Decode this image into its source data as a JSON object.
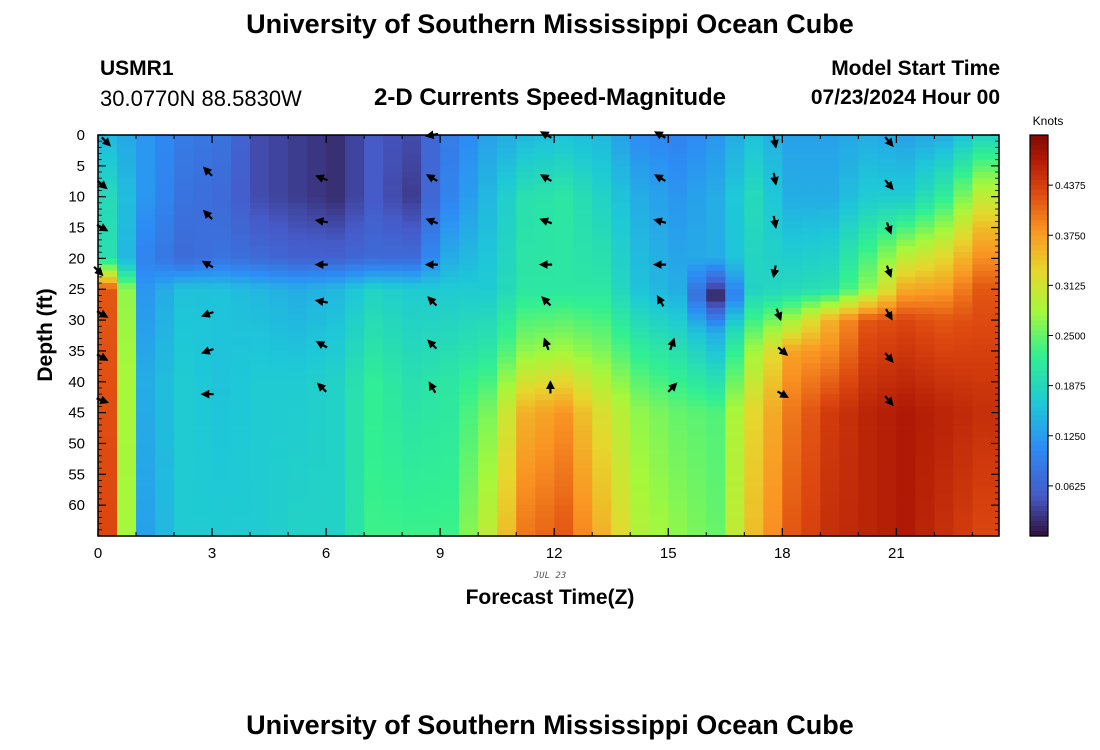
{
  "header": {
    "title": "University of Southern Mississippi Ocean Cube",
    "station_id": "USMR1",
    "location": "30.0770N  88.5830W",
    "subtitle": "2-D Currents Speed-Magnitude",
    "model_label": "Model Start Time",
    "model_time": "07/23/2024 Hour 00"
  },
  "footer": {
    "title": "University of Southern Mississippi Ocean Cube"
  },
  "chart_data": {
    "type": "heatmap",
    "title": "2-D Currents Speed-Magnitude",
    "xlabel": "Forecast Time(Z)",
    "ylabel": "Depth (ft)",
    "date_label": "JUL 23",
    "xlim": [
      0,
      23.7
    ],
    "ylim": [
      0,
      65
    ],
    "x_ticks": [
      0,
      3,
      6,
      9,
      12,
      15,
      18,
      21
    ],
    "y_ticks": [
      0,
      5,
      10,
      15,
      20,
      25,
      30,
      35,
      40,
      45,
      50,
      55,
      60
    ],
    "colorbar": {
      "unit": "Knots",
      "range": [
        0,
        0.5
      ],
      "ticks": [
        "0.4375",
        "0.3750",
        "0.3125",
        "0.2500",
        "0.1875",
        "0.1250",
        "0.0625"
      ],
      "tick_values": [
        0.4375,
        0.375,
        0.3125,
        0.25,
        0.1875,
        0.125,
        0.0625
      ]
    },
    "speed_columns": [
      {
        "hour": 0,
        "depths": [
          0,
          10,
          20,
          22,
          25,
          65
        ],
        "speeds": [
          0.15,
          0.19,
          0.2,
          0.28,
          0.42,
          0.43
        ]
      },
      {
        "hour": 1,
        "depths": [
          0,
          10,
          20,
          25,
          40,
          65
        ],
        "speeds": [
          0.12,
          0.12,
          0.1,
          0.12,
          0.14,
          0.13
        ]
      },
      {
        "hour": 2,
        "depths": [
          0,
          10,
          20,
          25,
          40,
          65
        ],
        "speeds": [
          0.09,
          0.08,
          0.07,
          0.16,
          0.17,
          0.17
        ]
      },
      {
        "hour": 3,
        "depths": [
          0,
          10,
          20,
          25,
          40,
          65
        ],
        "speeds": [
          0.08,
          0.07,
          0.08,
          0.16,
          0.16,
          0.17
        ]
      },
      {
        "hour": 4,
        "depths": [
          0,
          10,
          20,
          25,
          40,
          65
        ],
        "speeds": [
          0.04,
          0.04,
          0.07,
          0.15,
          0.17,
          0.17
        ]
      },
      {
        "hour": 5,
        "depths": [
          0,
          10,
          20,
          25,
          40,
          65
        ],
        "speeds": [
          0.03,
          0.03,
          0.06,
          0.14,
          0.17,
          0.18
        ]
      },
      {
        "hour": 6,
        "depths": [
          0,
          10,
          20,
          25,
          40,
          65
        ],
        "speeds": [
          0.02,
          0.02,
          0.06,
          0.15,
          0.18,
          0.18
        ]
      },
      {
        "hour": 7,
        "depths": [
          0,
          10,
          20,
          25,
          40,
          65
        ],
        "speeds": [
          0.05,
          0.05,
          0.07,
          0.18,
          0.22,
          0.23
        ]
      },
      {
        "hour": 8,
        "depths": [
          0,
          10,
          20,
          25,
          40,
          65
        ],
        "speeds": [
          0.04,
          0.03,
          0.07,
          0.17,
          0.2,
          0.23
        ]
      },
      {
        "hour": 9,
        "depths": [
          0,
          10,
          20,
          25,
          40,
          65
        ],
        "speeds": [
          0.09,
          0.1,
          0.14,
          0.17,
          0.21,
          0.23
        ]
      },
      {
        "hour": 10,
        "depths": [
          0,
          10,
          25,
          35,
          45,
          65
        ],
        "speeds": [
          0.13,
          0.15,
          0.17,
          0.21,
          0.26,
          0.3
        ]
      },
      {
        "hour": 11,
        "depths": [
          0,
          10,
          25,
          35,
          45,
          65
        ],
        "speeds": [
          0.15,
          0.2,
          0.21,
          0.27,
          0.36,
          0.4
        ]
      },
      {
        "hour": 12,
        "depths": [
          0,
          10,
          25,
          35,
          45,
          65
        ],
        "speeds": [
          0.16,
          0.21,
          0.21,
          0.28,
          0.38,
          0.42
        ]
      },
      {
        "hour": 13,
        "depths": [
          0,
          10,
          25,
          35,
          45,
          65
        ],
        "speeds": [
          0.15,
          0.18,
          0.21,
          0.26,
          0.32,
          0.36
        ]
      },
      {
        "hour": 14,
        "depths": [
          0,
          10,
          25,
          35,
          45,
          65
        ],
        "speeds": [
          0.11,
          0.14,
          0.16,
          0.22,
          0.27,
          0.29
        ]
      },
      {
        "hour": 15,
        "depths": [
          0,
          10,
          25,
          35,
          45,
          65
        ],
        "speeds": [
          0.1,
          0.12,
          0.14,
          0.2,
          0.25,
          0.27
        ]
      },
      {
        "hour": 16,
        "depths": [
          0,
          10,
          20,
          26,
          32,
          45,
          65
        ],
        "speeds": [
          0.12,
          0.14,
          0.14,
          0.01,
          0.14,
          0.24,
          0.25
        ]
      },
      {
        "hour": 17,
        "depths": [
          0,
          10,
          25,
          35,
          45,
          65
        ],
        "speeds": [
          0.16,
          0.19,
          0.18,
          0.28,
          0.33,
          0.35
        ]
      },
      {
        "hour": 18,
        "depths": [
          0,
          10,
          25,
          35,
          45,
          65
        ],
        "speeds": [
          0.13,
          0.14,
          0.19,
          0.37,
          0.4,
          0.42
        ]
      },
      {
        "hour": 19,
        "depths": [
          0,
          10,
          25,
          30,
          45,
          65
        ],
        "speeds": [
          0.13,
          0.14,
          0.2,
          0.36,
          0.44,
          0.45
        ]
      },
      {
        "hour": 20,
        "depths": [
          0,
          10,
          25,
          30,
          45,
          65
        ],
        "speeds": [
          0.14,
          0.17,
          0.27,
          0.42,
          0.46,
          0.46
        ]
      },
      {
        "hour": 21,
        "depths": [
          0,
          10,
          20,
          30,
          45,
          65
        ],
        "speeds": [
          0.13,
          0.17,
          0.3,
          0.43,
          0.47,
          0.47
        ]
      },
      {
        "hour": 22,
        "depths": [
          0,
          10,
          20,
          30,
          45,
          65
        ],
        "speeds": [
          0.14,
          0.22,
          0.33,
          0.42,
          0.46,
          0.45
        ]
      },
      {
        "hour": 23,
        "depths": [
          0,
          8,
          15,
          25,
          45,
          65
        ],
        "speeds": [
          0.18,
          0.28,
          0.35,
          0.42,
          0.45,
          0.43
        ]
      }
    ],
    "vectors": [
      {
        "hour": 0.2,
        "depth": 1,
        "dir_deg": 135
      },
      {
        "hour": 0.1,
        "depth": 8,
        "dir_deg": 130
      },
      {
        "hour": 0.1,
        "depth": 15,
        "dir_deg": 120
      },
      {
        "hour": 0,
        "depth": 22,
        "dir_deg": 135
      },
      {
        "hour": 0.1,
        "depth": 29,
        "dir_deg": 120
      },
      {
        "hour": 0.1,
        "depth": 36,
        "dir_deg": 120
      },
      {
        "hour": 0.1,
        "depth": 43,
        "dir_deg": 110
      },
      {
        "hour": 2.9,
        "depth": 6,
        "dir_deg": -45
      },
      {
        "hour": 2.9,
        "depth": 13,
        "dir_deg": -45
      },
      {
        "hour": 2.9,
        "depth": 21,
        "dir_deg": -60
      },
      {
        "hour": 2.9,
        "depth": 29,
        "dir_deg": -110
      },
      {
        "hour": 2.9,
        "depth": 35,
        "dir_deg": -110
      },
      {
        "hour": 2.9,
        "depth": 42,
        "dir_deg": -90
      },
      {
        "hour": 5.9,
        "depth": 7,
        "dir_deg": -70
      },
      {
        "hour": 5.9,
        "depth": 14,
        "dir_deg": -80
      },
      {
        "hour": 5.9,
        "depth": 21,
        "dir_deg": -90
      },
      {
        "hour": 5.9,
        "depth": 27,
        "dir_deg": -80
      },
      {
        "hour": 5.9,
        "depth": 34,
        "dir_deg": -60
      },
      {
        "hour": 5.9,
        "depth": 41,
        "dir_deg": -45
      },
      {
        "hour": 8.8,
        "depth": 0,
        "dir_deg": -100
      },
      {
        "hour": 8.8,
        "depth": 7,
        "dir_deg": -60
      },
      {
        "hour": 8.8,
        "depth": 14,
        "dir_deg": -70
      },
      {
        "hour": 8.8,
        "depth": 21,
        "dir_deg": -90
      },
      {
        "hour": 8.8,
        "depth": 27,
        "dir_deg": -45
      },
      {
        "hour": 8.8,
        "depth": 34,
        "dir_deg": -45
      },
      {
        "hour": 8.8,
        "depth": 41,
        "dir_deg": -30
      },
      {
        "hour": 11.8,
        "depth": 0,
        "dir_deg": -60
      },
      {
        "hour": 11.8,
        "depth": 7,
        "dir_deg": -60
      },
      {
        "hour": 11.8,
        "depth": 14,
        "dir_deg": -70
      },
      {
        "hour": 11.8,
        "depth": 21,
        "dir_deg": -90
      },
      {
        "hour": 11.8,
        "depth": 27,
        "dir_deg": -45
      },
      {
        "hour": 11.8,
        "depth": 34,
        "dir_deg": -20
      },
      {
        "hour": 11.9,
        "depth": 41,
        "dir_deg": 0
      },
      {
        "hour": 14.8,
        "depth": 0,
        "dir_deg": -60
      },
      {
        "hour": 14.8,
        "depth": 7,
        "dir_deg": -60
      },
      {
        "hour": 14.8,
        "depth": 14,
        "dir_deg": -75
      },
      {
        "hour": 14.8,
        "depth": 21,
        "dir_deg": -90
      },
      {
        "hour": 14.8,
        "depth": 27,
        "dir_deg": -30
      },
      {
        "hour": 15.1,
        "depth": 34,
        "dir_deg": 20
      },
      {
        "hour": 15.1,
        "depth": 41,
        "dir_deg": 45
      },
      {
        "hour": 17.8,
        "depth": 1,
        "dir_deg": 170
      },
      {
        "hour": 17.8,
        "depth": 7,
        "dir_deg": 170
      },
      {
        "hour": 17.8,
        "depth": 14,
        "dir_deg": 170
      },
      {
        "hour": 17.8,
        "depth": 22,
        "dir_deg": 190
      },
      {
        "hour": 17.9,
        "depth": 29,
        "dir_deg": 160
      },
      {
        "hour": 18.0,
        "depth": 35,
        "dir_deg": 130
      },
      {
        "hour": 18.0,
        "depth": 42,
        "dir_deg": 120
      },
      {
        "hour": 20.8,
        "depth": 1,
        "dir_deg": 140
      },
      {
        "hour": 20.8,
        "depth": 8,
        "dir_deg": 140
      },
      {
        "hour": 20.8,
        "depth": 15,
        "dir_deg": 160
      },
      {
        "hour": 20.8,
        "depth": 22,
        "dir_deg": 160
      },
      {
        "hour": 20.8,
        "depth": 29,
        "dir_deg": 150
      },
      {
        "hour": 20.8,
        "depth": 36,
        "dir_deg": 140
      },
      {
        "hour": 20.8,
        "depth": 43,
        "dir_deg": 140
      }
    ]
  }
}
